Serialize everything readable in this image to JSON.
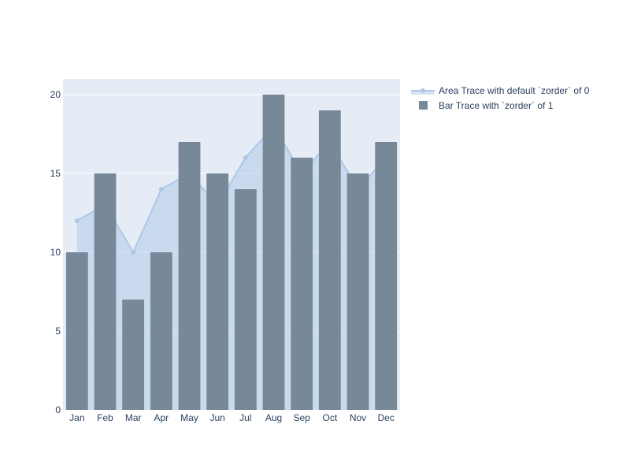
{
  "chart_data": {
    "type": "bar",
    "categories": [
      "Jan",
      "Feb",
      "Mar",
      "Apr",
      "May",
      "Jun",
      "Jul",
      "Aug",
      "Sep",
      "Oct",
      "Nov",
      "Dec"
    ],
    "series": [
      {
        "name": "Area Trace with default `zorder` of 0",
        "kind": "area",
        "values": [
          12,
          13,
          10,
          14,
          15,
          13,
          16,
          18,
          15,
          17,
          14,
          16
        ],
        "color": "#aec7e8"
      },
      {
        "name": "Bar Trace with `zorder` of 1",
        "kind": "bar",
        "values": [
          10,
          15,
          7,
          10,
          17,
          15,
          14,
          20,
          16,
          19,
          15,
          17
        ],
        "color": "#778899"
      }
    ],
    "title": "",
    "xlabel": "",
    "ylabel": "",
    "ylim": [
      0,
      21
    ],
    "yticks": [
      0,
      5,
      10,
      15,
      20
    ],
    "grid": true,
    "legend_position": "top-right",
    "plot_background": "#e5ecf6",
    "text_color": "#2a3f5f"
  }
}
